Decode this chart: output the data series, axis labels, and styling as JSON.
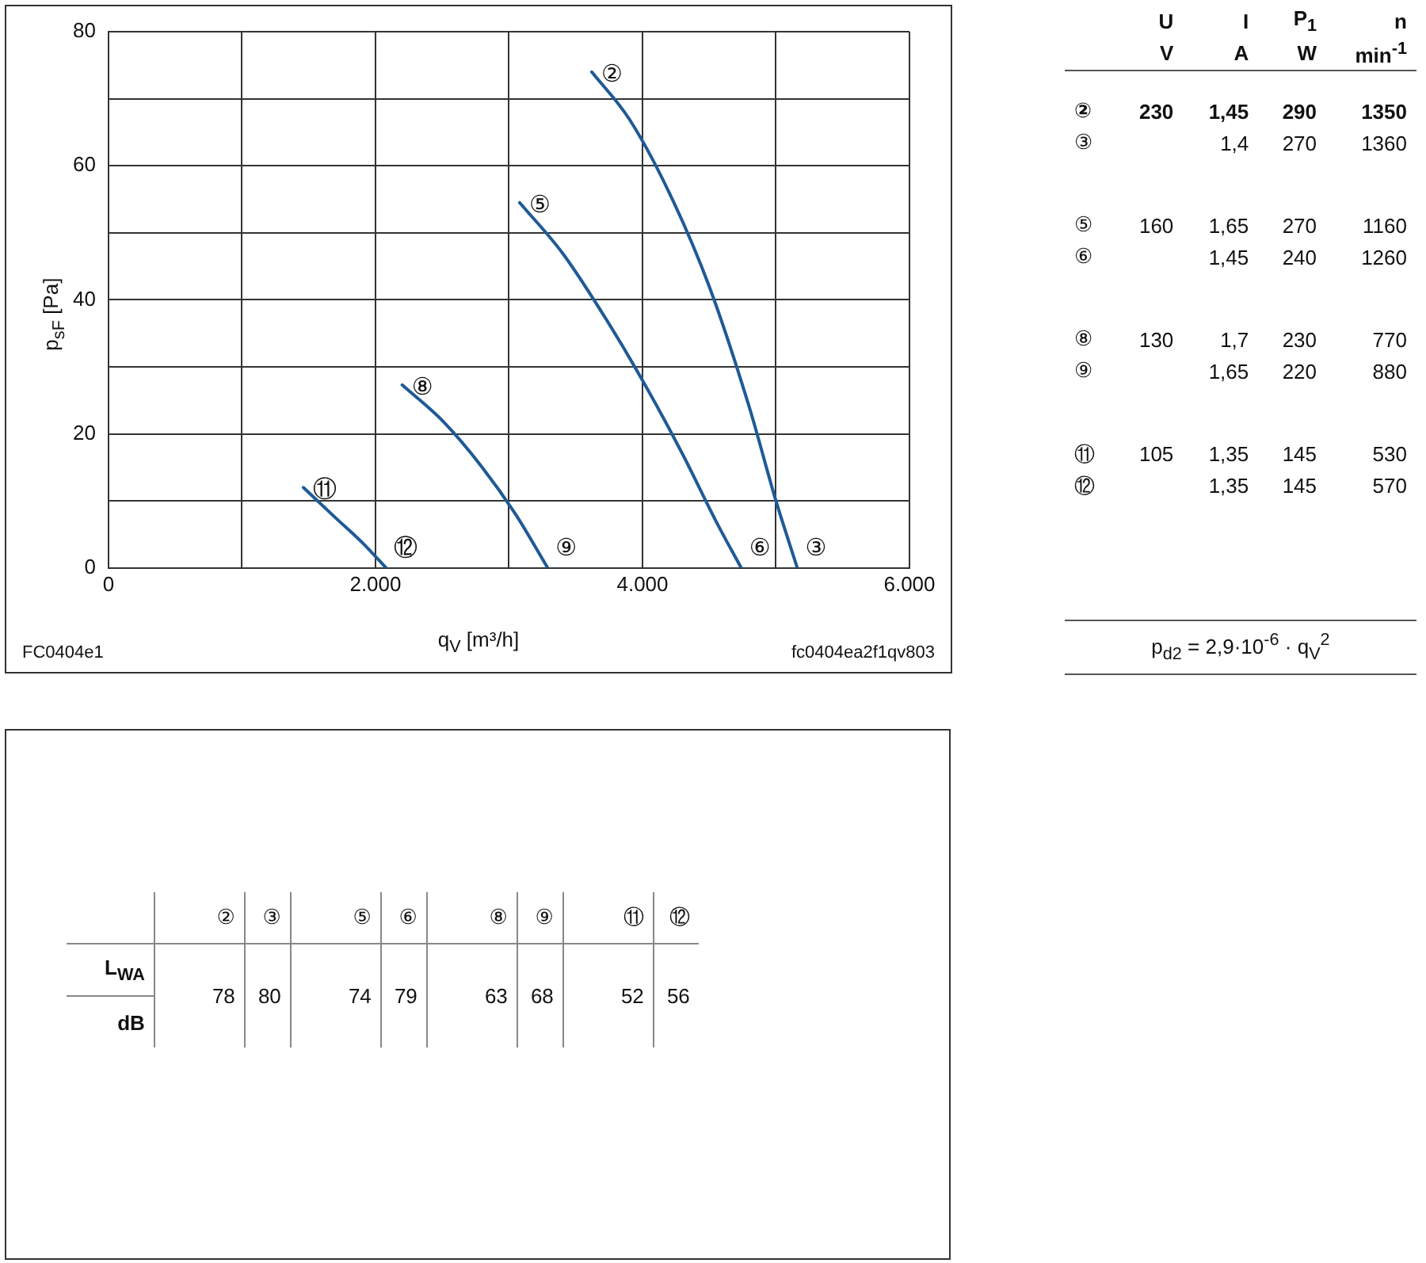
{
  "chart_data": [
    {
      "type": "line",
      "xlabel": "q$_{V}$ [m³/h]",
      "ylabel": "p$_{sF}$ [Pa]",
      "xlim": [
        0,
        6000
      ],
      "ylim": [
        0,
        80
      ],
      "xticks": [
        0,
        {
          "value": 1000,
          "label": null
        },
        {
          "value": 2000,
          "label": "2.000"
        },
        {
          "value": 3000,
          "label": null
        },
        {
          "value": 4000,
          "label": "4.000"
        },
        {
          "value": 5000,
          "label": null
        },
        {
          "value": 6000,
          "label": "6.000"
        }
      ],
      "yticks": [
        0,
        {
          "value": 10,
          "label": null
        },
        20,
        {
          "value": 30,
          "label": null
        },
        40,
        {
          "value": 50,
          "label": null
        },
        60,
        {
          "value": 70,
          "label": null
        },
        80
      ],
      "grid": true,
      "legend": false,
      "marker": "none",
      "line_style": "solid",
      "series": [
        {
          "name": "②",
          "color": "#1f5a96",
          "x": [
            3620,
            3900,
            4200,
            4500,
            4800,
            5000,
            5160
          ],
          "values": [
            74,
            67,
            56,
            42,
            24,
            10,
            0
          ]
        },
        {
          "name": "⑤",
          "color": "#1f5a96",
          "x": [
            3080,
            3400,
            3700,
            4000,
            4300,
            4550,
            4740
          ],
          "values": [
            54.5,
            47,
            38,
            28,
            17,
            7,
            0
          ]
        },
        {
          "name": "⑧",
          "color": "#1f5a96",
          "x": [
            2200,
            2500,
            2800,
            3050,
            3290
          ],
          "values": [
            27.3,
            22,
            15,
            8,
            0
          ]
        },
        {
          "name": "⑪",
          "color": "#1f5a96",
          "x": [
            1460,
            1700,
            1900,
            2080
          ],
          "values": [
            12,
            7.5,
            3.8,
            0
          ]
        }
      ],
      "annotations": [
        {
          "text": "③",
          "x": 5160,
          "y": 0
        },
        {
          "text": "⑥",
          "x": 4740,
          "y": 0
        },
        {
          "text": "⑨",
          "x": 3290,
          "y": 0
        },
        {
          "text": "⑫",
          "x": 2080,
          "y": 0
        },
        "FC0404e1",
        "fc0404ea2f1qv803"
      ]
    },
    {
      "type": "other",
      "data_labels": true,
      "categories": [
        "②",
        "③",
        "⑤",
        "⑥",
        "⑧",
        "⑨",
        "⑪",
        "⑫"
      ],
      "series": [
        {
          "name": "U",
          "values": [
            230,
            null,
            160,
            null,
            130,
            null,
            105,
            null
          ]
        },
        {
          "name": "I",
          "values": [
            1.45,
            1.4,
            1.65,
            1.45,
            1.7,
            1.65,
            1.35,
            1.35
          ],
          "value_labels": [
            "1,45",
            "1,4",
            "1,65",
            "1,45",
            "1,7",
            "1,65",
            "1,35",
            "1,35"
          ]
        },
        {
          "name": "P$_{1}$",
          "values": [
            290,
            270,
            270,
            240,
            230,
            220,
            145,
            145
          ]
        },
        {
          "name": "n",
          "values": [
            1350,
            1360,
            1160,
            1260,
            770,
            880,
            530,
            570
          ]
        }
      ],
      "annotations": [
        "V",
        "A",
        "W",
        "min$^{-1}$",
        "p$_{d2}$ = 2,9·10$^{-6}$ · q$_{V}$$^{2}$"
      ]
    },
    {
      "type": "other",
      "data_labels": true,
      "categories": [
        "②",
        "③",
        "⑤",
        "⑥",
        "⑧",
        "⑨",
        "⑪",
        "⑫"
      ],
      "values": [
        78,
        80,
        74,
        79,
        63,
        68,
        52,
        56
      ],
      "ylabel": "L$_{WA}$",
      "annotations": [
        "dB"
      ]
    }
  ]
}
